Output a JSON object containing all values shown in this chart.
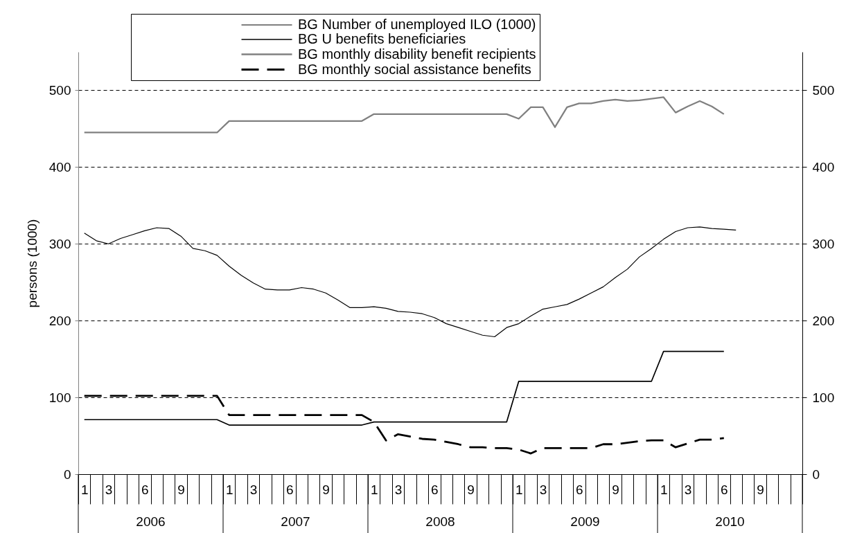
{
  "chart_data": {
    "type": "line",
    "ylabel": "persons (1000)",
    "categories": [
      "1",
      null,
      "3",
      null,
      null,
      "6",
      null,
      null,
      "9",
      null,
      null,
      null,
      "1",
      null,
      "3",
      null,
      null,
      "6",
      null,
      null,
      "9",
      null,
      null,
      null,
      "1",
      null,
      "3",
      null,
      null,
      "6",
      null,
      null,
      "9",
      null,
      null,
      null,
      "1",
      null,
      "3",
      null,
      null,
      "6",
      null,
      null,
      "9",
      null,
      null,
      null,
      "1",
      null,
      "3",
      null,
      null,
      "6",
      null,
      null,
      "9",
      null,
      null,
      null
    ],
    "annotations": [
      "2006",
      "2007",
      "2008",
      "2009",
      "2010"
    ],
    "series": [
      {
        "name": "BG Number of unemployed ILO (1000)",
        "color": "#000000",
        "values": [
          314,
          304,
          300,
          307,
          312,
          317,
          321,
          320,
          310,
          294,
          291,
          285,
          271,
          259,
          249,
          241,
          240,
          240,
          243,
          241,
          236,
          227,
          217,
          217,
          218,
          216,
          212,
          211,
          209,
          204,
          196,
          191,
          186,
          181,
          179,
          191,
          196,
          206,
          215,
          218,
          221,
          228,
          236,
          244,
          256,
          267,
          283,
          294,
          306,
          316,
          321,
          322,
          320,
          319,
          318,
          null,
          null,
          null,
          null,
          null
        ]
      },
      {
        "name": "BG U benefits beneficiaries",
        "color": "#000000",
        "values": [
          71,
          71,
          71,
          71,
          71,
          71,
          71,
          71,
          71,
          71,
          71,
          71,
          64,
          64,
          64,
          64,
          64,
          64,
          64,
          64,
          64,
          64,
          64,
          64,
          68,
          68,
          68,
          68,
          68,
          68,
          68,
          68,
          68,
          68,
          68,
          68,
          121,
          121,
          121,
          121,
          121,
          121,
          121,
          121,
          121,
          121,
          121,
          121,
          160,
          160,
          160,
          160,
          160,
          160,
          null,
          null,
          null,
          null,
          null,
          null
        ]
      },
      {
        "name": "BG monthly disability benefit recipients",
        "color": "#808080",
        "values": [
          445,
          445,
          445,
          445,
          445,
          445,
          445,
          445,
          445,
          445,
          445,
          445,
          460,
          460,
          460,
          460,
          460,
          460,
          460,
          460,
          460,
          460,
          460,
          460,
          469,
          469,
          469,
          469,
          469,
          469,
          469,
          469,
          469,
          469,
          469,
          469,
          463,
          478,
          478,
          452,
          478,
          483,
          483,
          486,
          488,
          486,
          487,
          489,
          491,
          471,
          479,
          486,
          479,
          469,
          null,
          null,
          null,
          null,
          null,
          null
        ]
      },
      {
        "name": "BG monthly social assistance benefits",
        "color": "#000000",
        "line_style": "dashed",
        "values": [
          102,
          102,
          102,
          102,
          102,
          102,
          102,
          102,
          102,
          102,
          102,
          102,
          77,
          77,
          77,
          77,
          77,
          77,
          77,
          77,
          77,
          77,
          77,
          77,
          68,
          44,
          52,
          49,
          46,
          45,
          42,
          39,
          35,
          35,
          34,
          34,
          32,
          27,
          34,
          34,
          34,
          34,
          34,
          39,
          39,
          41,
          43,
          44,
          44,
          35,
          40,
          45,
          45,
          47,
          null,
          null,
          null,
          null,
          null,
          null
        ]
      }
    ],
    "ylim": [
      0,
      550
    ],
    "yticks": [
      0,
      100,
      200,
      300,
      400,
      500
    ],
    "y2lim": [
      0,
      550
    ],
    "y2ticks": [
      0,
      100,
      200,
      300,
      400,
      500
    ],
    "grid": "y",
    "legend": "top",
    "line_style": "solid"
  }
}
